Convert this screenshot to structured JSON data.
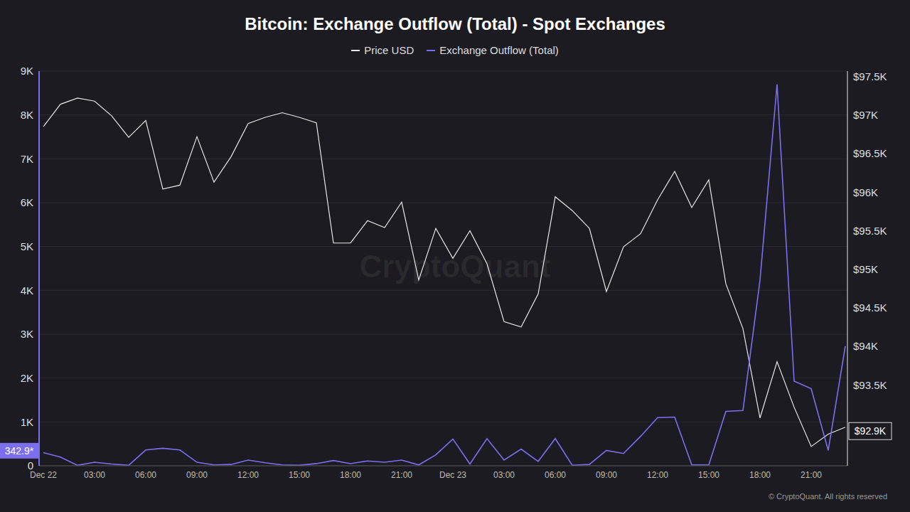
{
  "chart_data": {
    "type": "line",
    "title": "Bitcoin: Exchange Outflow (Total) - Spot Exchanges",
    "watermark": "CryptoQuant",
    "footer": "© CryptoQuant. All rights reserved",
    "legend": "top",
    "grid": true,
    "categories": [
      "Dec 22",
      null,
      null,
      "03:00",
      null,
      null,
      "06:00",
      null,
      null,
      "09:00",
      null,
      null,
      "12:00",
      null,
      null,
      "15:00",
      null,
      null,
      "18:00",
      null,
      null,
      "21:00",
      null,
      null,
      "Dec 23",
      null,
      null,
      "03:00",
      null,
      null,
      "06:00",
      null,
      null,
      "09:00",
      null,
      null,
      "12:00",
      null,
      null,
      "15:00",
      null,
      null,
      "18:00",
      null,
      null,
      "21:00",
      null,
      null
    ],
    "ylim": [
      0,
      9000
    ],
    "yticks": [
      {
        "value": 0,
        "label": "0"
      },
      {
        "value": 1000,
        "label": "1K"
      },
      {
        "value": 2000,
        "label": "2K"
      },
      {
        "value": 3000,
        "label": "3K"
      },
      {
        "value": 4000,
        "label": "4K"
      },
      {
        "value": 5000,
        "label": "5K"
      },
      {
        "value": 6000,
        "label": "6K"
      },
      {
        "value": 7000,
        "label": "7K"
      },
      {
        "value": 8000,
        "label": "8K"
      },
      {
        "value": 9000,
        "label": "9K"
      }
    ],
    "y2lim": [
      92450,
      97570
    ],
    "y2ticks": [
      {
        "value": 93500,
        "label": "$93.5K"
      },
      {
        "value": 94000,
        "label": "$94K"
      },
      {
        "value": 94500,
        "label": "$94.5K"
      },
      {
        "value": 95000,
        "label": "$95K"
      },
      {
        "value": 95500,
        "label": "$95.5K"
      },
      {
        "value": 96000,
        "label": "$96K"
      },
      {
        "value": 96500,
        "label": "$96.5K"
      },
      {
        "value": 97000,
        "label": "$97K"
      },
      {
        "value": 97500,
        "label": "$97.5K"
      }
    ],
    "series": [
      {
        "name": "Price USD",
        "color": "#e8e8e8",
        "axis": "y2",
        "values": [
          96850,
          97140,
          97220,
          97180,
          96990,
          96710,
          96930,
          96040,
          96090,
          96720,
          96130,
          96460,
          96890,
          96970,
          97030,
          96970,
          96900,
          95340,
          95340,
          95630,
          95540,
          95870,
          94860,
          95530,
          95140,
          95500,
          95070,
          94320,
          94250,
          94680,
          95940,
          95760,
          95530,
          94710,
          95290,
          95460,
          95900,
          96270,
          95800,
          96160,
          94810,
          94230,
          93070,
          93800,
          93210,
          92700,
          92860,
          92950
        ]
      },
      {
        "name": "Exchange Outflow (Total)",
        "color": "#7b6ff0",
        "axis": "y",
        "values": [
          300,
          200,
          10,
          80,
          40,
          10,
          360,
          400,
          360,
          80,
          20,
          30,
          130,
          70,
          20,
          10,
          50,
          120,
          50,
          110,
          80,
          130,
          20,
          250,
          610,
          40,
          620,
          130,
          380,
          100,
          620,
          10,
          30,
          350,
          280,
          670,
          1100,
          1110,
          20,
          20,
          1240,
          1260,
          4230,
          8700,
          1930,
          1760,
          350,
          2730
        ]
      }
    ],
    "annotations": [
      {
        "text": "342.9*",
        "value": 342.9,
        "axis": "y"
      },
      {
        "text": "$92.9K",
        "value": 92900,
        "axis": "y2"
      }
    ]
  }
}
